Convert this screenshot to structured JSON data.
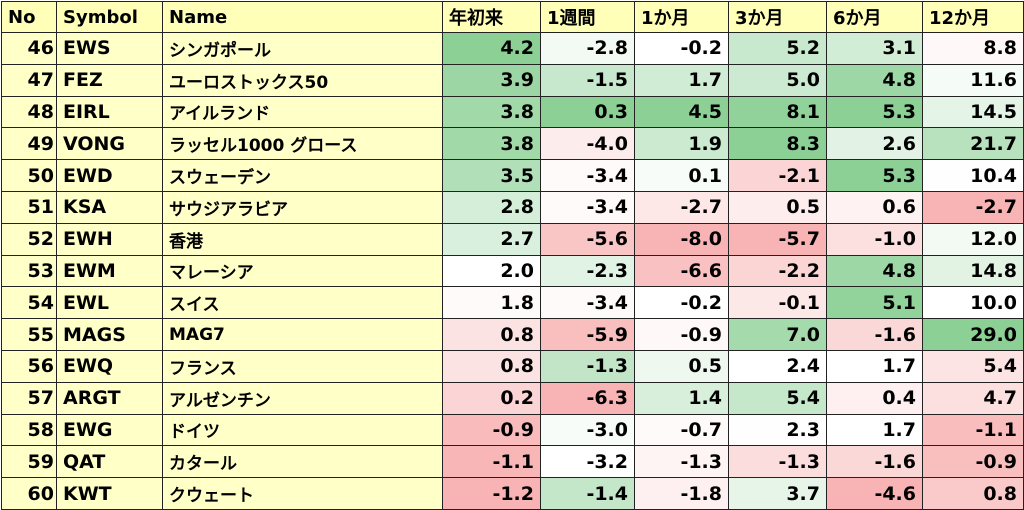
{
  "table": {
    "header": [
      "No",
      "Symbol",
      "Name",
      "年初来",
      "1週間",
      "1か月",
      "3か月",
      "6か月",
      "12か月"
    ],
    "rows": [
      [
        "46",
        "EWS",
        "シンガポール",
        "4.2",
        "-2.8",
        "-0.2",
        "5.2",
        "3.1",
        "8.8"
      ],
      [
        "47",
        "FEZ",
        "ユーロストックス50",
        "3.9",
        "-1.5",
        "1.7",
        "5.0",
        "4.8",
        "11.6"
      ],
      [
        "48",
        "EIRL",
        "アイルランド",
        "3.8",
        "0.3",
        "4.5",
        "8.1",
        "5.3",
        "14.5"
      ],
      [
        "49",
        "VONG",
        "ラッセル1000 グロース",
        "3.8",
        "-4.0",
        "1.9",
        "8.3",
        "2.6",
        "21.7"
      ],
      [
        "50",
        "EWD",
        "スウェーデン",
        "3.5",
        "-3.4",
        "0.1",
        "-2.1",
        "5.3",
        "10.4"
      ],
      [
        "51",
        "KSA",
        "サウジアラビア",
        "2.8",
        "-3.4",
        "-2.7",
        "0.5",
        "0.6",
        "-2.7"
      ],
      [
        "52",
        "EWH",
        "香港",
        "2.7",
        "-5.6",
        "-8.0",
        "-5.7",
        "-1.0",
        "12.0"
      ],
      [
        "53",
        "EWM",
        "マレーシア",
        "2.0",
        "-2.3",
        "-6.6",
        "-2.2",
        "4.8",
        "14.8"
      ],
      [
        "54",
        "EWL",
        "スイス",
        "1.8",
        "-3.4",
        "-0.2",
        "-0.1",
        "5.1",
        "10.0"
      ],
      [
        "55",
        "MAGS",
        "MAG7",
        "0.8",
        "-5.9",
        "-0.9",
        "7.0",
        "-1.6",
        "29.0"
      ],
      [
        "56",
        "EWQ",
        "フランス",
        "0.8",
        "-1.3",
        "0.5",
        "2.4",
        "1.7",
        "5.4"
      ],
      [
        "57",
        "ARGT",
        "アルゼンチン",
        "0.2",
        "-6.3",
        "1.4",
        "5.4",
        "0.4",
        "4.7"
      ],
      [
        "58",
        "EWG",
        "ドイツ",
        "-0.9",
        "-3.0",
        "-0.7",
        "2.3",
        "1.7",
        "-1.1"
      ],
      [
        "59",
        "QAT",
        "カタール",
        "-1.1",
        "-3.2",
        "-1.3",
        "-1.3",
        "-1.6",
        "-0.9"
      ],
      [
        "60",
        "KWT",
        "クウェート",
        "-1.2",
        "-1.4",
        "-1.8",
        "3.7",
        "-4.6",
        "0.8"
      ]
    ]
  }
}
